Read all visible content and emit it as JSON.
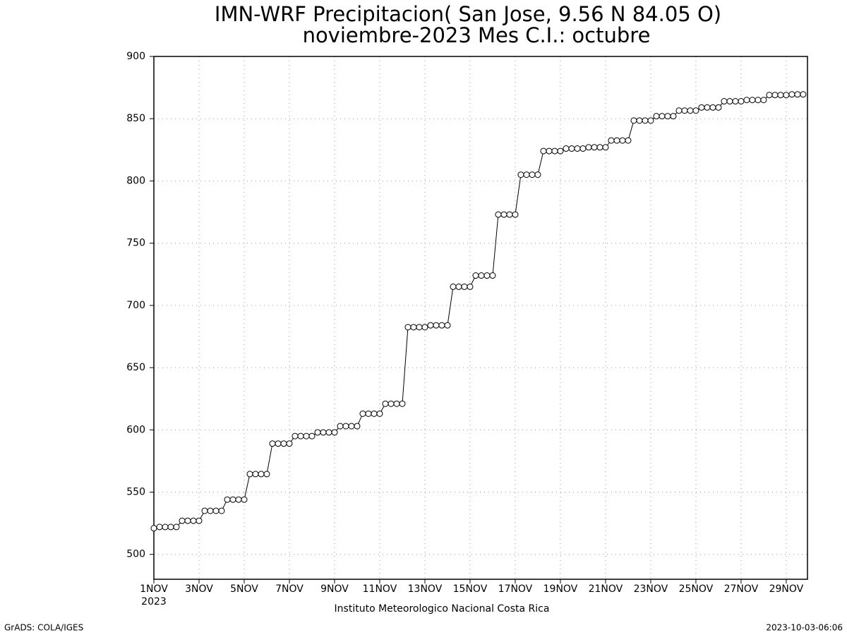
{
  "chart_data": {
    "type": "line",
    "title": "IMN-WRF  Precipitacion( San Jose, 9.56  N 84.05  O)",
    "subtitle": "noviembre-2023 Mes C.I.: octubre",
    "x_sublabel": "2023",
    "footer": "Instituto Meteorologico Nacional Costa Rica",
    "credit": "GrADS: COLA/IGES",
    "timestamp": "2023-10-03-06:06",
    "x": [
      1,
      1.25,
      1.5,
      1.75,
      2,
      2.25,
      2.5,
      2.75,
      3,
      3.25,
      3.5,
      3.75,
      4,
      4.25,
      4.5,
      4.75,
      5,
      5.25,
      5.5,
      5.75,
      6,
      6.25,
      6.5,
      6.75,
      7,
      7.25,
      7.5,
      7.75,
      8,
      8.25,
      8.5,
      8.75,
      9,
      9.25,
      9.5,
      9.75,
      10,
      10.25,
      10.5,
      10.75,
      11,
      11.25,
      11.5,
      11.75,
      12,
      12.25,
      12.5,
      12.75,
      13,
      13.25,
      13.5,
      13.75,
      14,
      14.25,
      14.5,
      14.75,
      15,
      15.25,
      15.5,
      15.75,
      16,
      16.25,
      16.5,
      16.75,
      17,
      17.25,
      17.5,
      17.75,
      18,
      18.25,
      18.5,
      18.75,
      19,
      19.25,
      19.5,
      19.75,
      20,
      20.25,
      20.5,
      20.75,
      21,
      21.25,
      21.5,
      21.75,
      22,
      22.25,
      22.5,
      22.75,
      23,
      23.25,
      23.5,
      23.75,
      24,
      24.25,
      24.5,
      24.75,
      25,
      25.25,
      25.5,
      25.75,
      26,
      26.25,
      26.5,
      26.75,
      27,
      27.25,
      27.5,
      27.75,
      28,
      28.25,
      28.5,
      28.75,
      29,
      29.25,
      29.5,
      29.75
    ],
    "series": [
      {
        "color": "#000000",
        "values": [
          521,
          522,
          522,
          522,
          522,
          527,
          527,
          527,
          527,
          535,
          535,
          535,
          535,
          544,
          544,
          544,
          544,
          564.5,
          564.5,
          564.5,
          564.5,
          589,
          589,
          589,
          589,
          595,
          595,
          595,
          595,
          598,
          598,
          598,
          598,
          603,
          603,
          603,
          603,
          613,
          613,
          613,
          613,
          621,
          621,
          621,
          621,
          682.5,
          682.5,
          682.5,
          682.5,
          684,
          684,
          684,
          684,
          715,
          715,
          715,
          715,
          724,
          724,
          724,
          724,
          773,
          773,
          773,
          773,
          805,
          805,
          805,
          805,
          824,
          824,
          824,
          824,
          826,
          826,
          826,
          826,
          827,
          827,
          827,
          827,
          832.5,
          832.5,
          832.5,
          832.5,
          848.5,
          848.5,
          848.5,
          848.5,
          852,
          852,
          852,
          852,
          856.5,
          856.5,
          856.5,
          856.5,
          859,
          859,
          859,
          859,
          864,
          864,
          864,
          864,
          865,
          865,
          865,
          865,
          869,
          869,
          869,
          869,
          869.5,
          869.5,
          869.5
        ]
      }
    ],
    "xlim": [
      1,
      29.94
    ],
    "xticks": [
      {
        "value": 1,
        "label": "1NOV"
      },
      {
        "value": 3,
        "label": "3NOV"
      },
      {
        "value": 5,
        "label": "5NOV"
      },
      {
        "value": 7,
        "label": "7NOV"
      },
      {
        "value": 9,
        "label": "9NOV"
      },
      {
        "value": 11,
        "label": "11NOV"
      },
      {
        "value": 13,
        "label": "13NOV"
      },
      {
        "value": 15,
        "label": "15NOV"
      },
      {
        "value": 17,
        "label": "17NOV"
      },
      {
        "value": 19,
        "label": "19NOV"
      },
      {
        "value": 21,
        "label": "21NOV"
      },
      {
        "value": 23,
        "label": "23NOV"
      },
      {
        "value": 25,
        "label": "25NOV"
      },
      {
        "value": 27,
        "label": "27NOV"
      },
      {
        "value": 29,
        "label": "29NOV"
      }
    ],
    "ylim": [
      480,
      900
    ],
    "yticks": [
      500,
      550,
      600,
      650,
      700,
      750,
      800,
      850,
      900
    ],
    "grid": true
  }
}
